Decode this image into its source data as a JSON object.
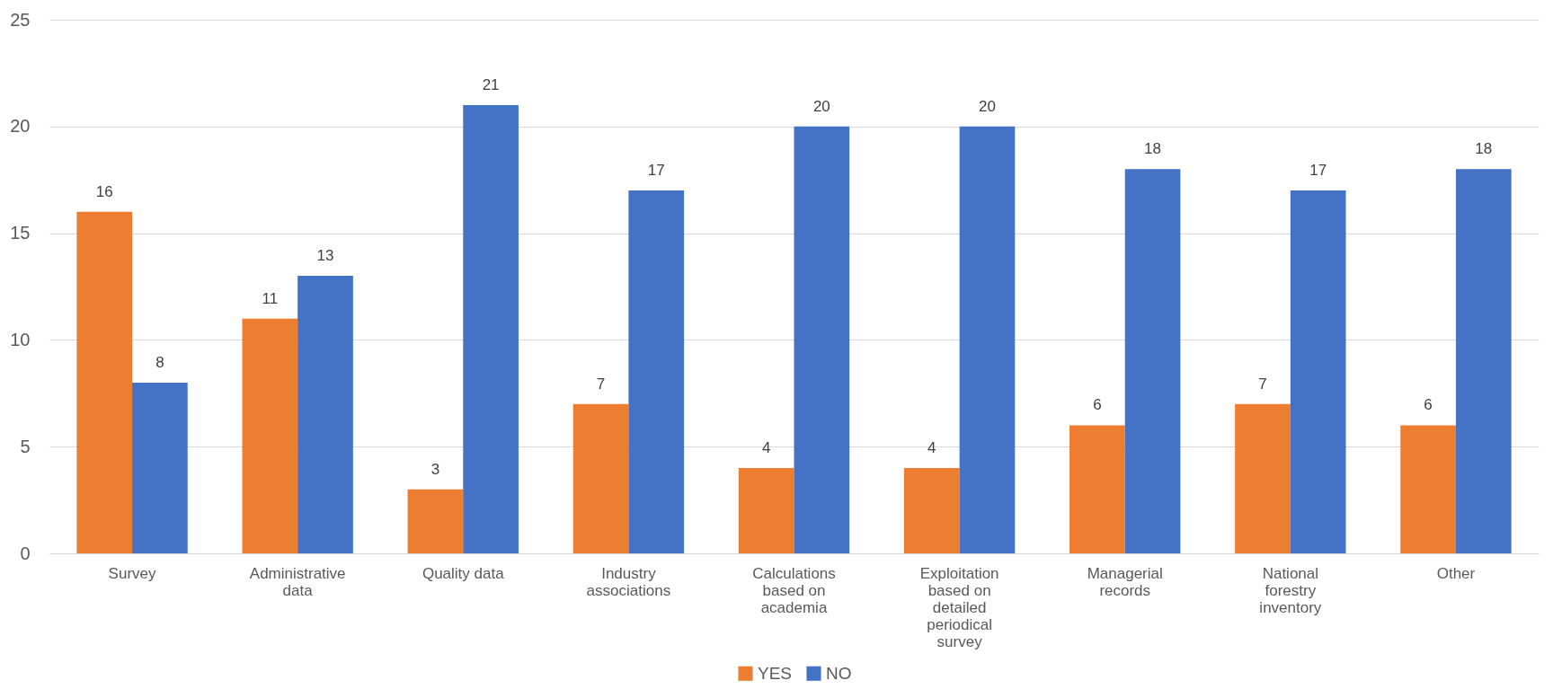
{
  "chart_data": {
    "type": "bar",
    "categories": [
      "Survey",
      "Administrative data",
      "Quality data",
      "Industry associations",
      "Calculations based on academia",
      "Exploitation based on detailed periodical survey",
      "Managerial records",
      "National forestry inventory",
      "Other"
    ],
    "series": [
      {
        "name": "YES",
        "color": "#ed7d31",
        "values": [
          16,
          11,
          3,
          7,
          4,
          4,
          6,
          7,
          6
        ]
      },
      {
        "name": "NO",
        "color": "#4472c4",
        "values": [
          8,
          13,
          21,
          17,
          20,
          20,
          18,
          17,
          18
        ]
      }
    ],
    "ylim": [
      0,
      25
    ],
    "yticks": [
      0,
      5,
      10,
      15,
      20,
      25
    ],
    "grid": "y",
    "legend": "bottom",
    "data_labels": true
  }
}
